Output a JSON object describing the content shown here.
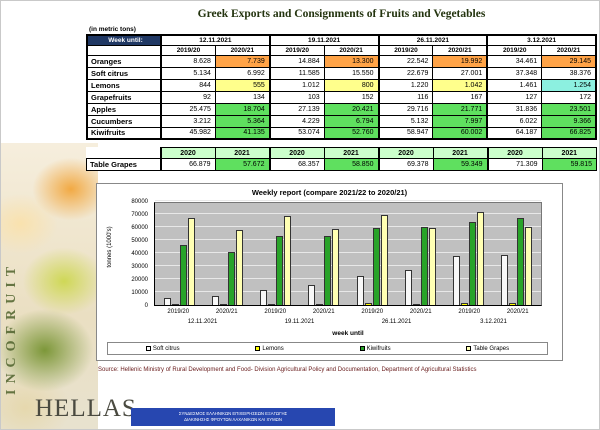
{
  "page": {
    "title": "Greek Exports and Consignments of Fruits and Vegetables",
    "units_note": "(in metric tons)",
    "source": "Source: Hellenic Ministry of Rural Development and Food- Division Agricultural Policy and Documentation, Department of Agricultural Statistics",
    "brand": {
      "vertical_text": "INCOFRUIT",
      "name": "HELLAS",
      "banner_line1": "ΣΥΝΔΕΣΜΟΣ ΕΛΛΗΝΙΚΩΝ ΕΠΙΧΕΙΡΗΣΕΩΝ ΕΞΑΓΩΓΗΣ",
      "banner_line2": "ΔΙΑΚΙΝΗΣΗΣ ΦΡΟΥΤΩΝ ΛΑΧΑΝΙΚΩΝ ΚΑΙ ΧΥΜΩΝ"
    }
  },
  "colors": {
    "orange": "#FFA347",
    "yellow": "#FFFF8C",
    "green": "#5FE05F",
    "cyan": "#8CF0E0",
    "header_navy": "#203864",
    "year_header_green": "#CCFFCC"
  },
  "main_table": {
    "corner_label": "Week until:",
    "dates": [
      "12.11.2021",
      "19.11.2021",
      "26.11.2021",
      "3.12.2021"
    ],
    "season_headers": [
      "2019/20",
      "2020/21"
    ],
    "rows": [
      {
        "label": "Oranges",
        "values": [
          "8.628",
          "7.739",
          "14.884",
          "13.300",
          "22.542",
          "19.992",
          "34.461",
          "29.145"
        ],
        "highlight": [
          "",
          "orange",
          "",
          "orange",
          "",
          "orange",
          "",
          "orange"
        ]
      },
      {
        "label": "Soft citrus",
        "values": [
          "5.134",
          "6.992",
          "11.585",
          "15.550",
          "22.679",
          "27.001",
          "37.348",
          "38.376"
        ],
        "highlight": [
          "",
          "",
          "",
          "",
          "",
          "",
          "",
          ""
        ]
      },
      {
        "label": "Lemons",
        "values": [
          "844",
          "555",
          "1.012",
          "800",
          "1.220",
          "1.042",
          "1.461",
          "1.254"
        ],
        "highlight": [
          "",
          "yellow",
          "",
          "yellow",
          "",
          "yellow",
          "",
          "cyan"
        ]
      },
      {
        "label": "Grapefruits",
        "values": [
          "92",
          "134",
          "103",
          "152",
          "116",
          "167",
          "127",
          "172"
        ],
        "highlight": [
          "",
          "",
          "",
          "",
          "",
          "",
          "",
          ""
        ]
      },
      {
        "label": "Apples",
        "values": [
          "25.475",
          "18.704",
          "27.139",
          "20.421",
          "29.716",
          "21.771",
          "31.836",
          "23.501"
        ],
        "highlight": [
          "",
          "green",
          "",
          "green",
          "",
          "green",
          "",
          "green"
        ]
      },
      {
        "label": "Cucumbers",
        "values": [
          "3.212",
          "5.364",
          "4.229",
          "6.794",
          "5.132",
          "7.997",
          "6.022",
          "9.366"
        ],
        "highlight": [
          "",
          "green",
          "",
          "green",
          "",
          "green",
          "",
          "green"
        ]
      },
      {
        "label": "Kiwifruits",
        "values": [
          "45.982",
          "41.135",
          "53.074",
          "52.760",
          "58.947",
          "60.002",
          "64.187",
          "66.825"
        ],
        "highlight": [
          "",
          "green",
          "",
          "green",
          "",
          "green",
          "",
          "green"
        ]
      }
    ]
  },
  "grapes_table": {
    "year_headers": [
      "2020",
      "2021"
    ],
    "row_label": "Table Grapes",
    "values": [
      "66.879",
      "57.672",
      "68.357",
      "58.850",
      "69.378",
      "59.349",
      "71.309",
      "59.815"
    ],
    "highlight": [
      "",
      "green",
      "",
      "green",
      "",
      "green",
      "",
      "green"
    ]
  },
  "chart_data": {
    "type": "bar",
    "title": "Weekly report (compare 2021/22 to 2020/21)",
    "ylabel": "tonnes (1000's)",
    "xlabel": "week until",
    "ylim": [
      0,
      80000
    ],
    "ytick_step": 10000,
    "grid": true,
    "plot_bg": "#C0C0C0",
    "legend_position": "bottom",
    "group_labels": [
      "12.11.2021",
      "19.11.2021",
      "26.11.2021",
      "3.12.2021"
    ],
    "categories": [
      "2019/20",
      "2020/21",
      "2019/20",
      "2020/21",
      "2019/20",
      "2020/21",
      "2019/20",
      "2020/21"
    ],
    "series": [
      {
        "name": "Soft citrus",
        "color": "#F8F8F8",
        "values": [
          5134,
          6992,
          11585,
          15550,
          22679,
          27001,
          37348,
          38376
        ]
      },
      {
        "name": "Lemons",
        "color": "#FFFF00",
        "values": [
          844,
          555,
          1012,
          800,
          1220,
          1042,
          1461,
          1254
        ]
      },
      {
        "name": "Kiwifruits",
        "color": "#29A329",
        "values": [
          45982,
          41135,
          53074,
          52760,
          58947,
          60002,
          64187,
          66825
        ]
      },
      {
        "name": "Table Grapes",
        "color": "#FFFFB3",
        "values": [
          66879,
          57672,
          68357,
          58850,
          69378,
          59349,
          71309,
          59815
        ]
      }
    ]
  }
}
